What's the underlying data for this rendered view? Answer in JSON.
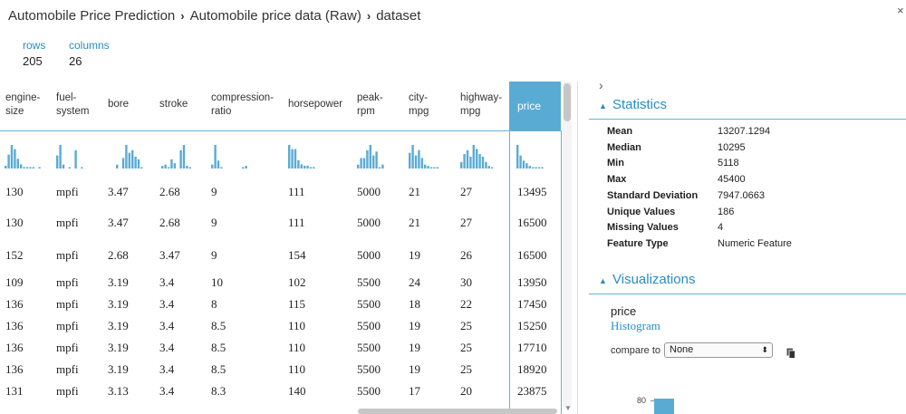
{
  "breadcrumb": [
    "Automobile Price Prediction",
    "Automobile price data (Raw)",
    "dataset"
  ],
  "breadcrumb_sep": "›",
  "close": "×",
  "summary": {
    "rows_label": "rows",
    "rows_value": "205",
    "columns_label": "columns",
    "columns_value": "26"
  },
  "columns": [
    {
      "l1": "engine-",
      "l2": "size"
    },
    {
      "l1": "fuel-",
      "l2": "system"
    },
    {
      "l1": "bore",
      "l2": ""
    },
    {
      "l1": "stroke",
      "l2": ""
    },
    {
      "l1": "compression-",
      "l2": "ratio"
    },
    {
      "l1": "horsepower",
      "l2": ""
    },
    {
      "l1": "peak-",
      "l2": "rpm"
    },
    {
      "l1": "city-",
      "l2": "mpg"
    },
    {
      "l1": "highway-",
      "l2": "mpg"
    },
    {
      "l1": "price",
      "l2": ""
    }
  ],
  "mini_histograms": [
    [
      2,
      10,
      17,
      14,
      7,
      3,
      1,
      1,
      1,
      1,
      0,
      1
    ],
    [
      10,
      18,
      3,
      0,
      1,
      0,
      14,
      0,
      1
    ],
    [
      3,
      0,
      8,
      18,
      12,
      14,
      9,
      7,
      1,
      0,
      0
    ],
    [
      2,
      3,
      1,
      7,
      4,
      0,
      14,
      18,
      2,
      1,
      0
    ],
    [
      3,
      18,
      6,
      1,
      0,
      0,
      0,
      0,
      0,
      0,
      1,
      2
    ],
    [
      17,
      14,
      14,
      6,
      3,
      2,
      2,
      1,
      1,
      0,
      0
    ],
    [
      3,
      8,
      8,
      14,
      18,
      10,
      13,
      1,
      3,
      0
    ],
    [
      12,
      18,
      10,
      14,
      8,
      3,
      2,
      1,
      1,
      1
    ],
    [
      5,
      11,
      14,
      9,
      18,
      15,
      11,
      9,
      5,
      2,
      1
    ],
    [
      18,
      10,
      6,
      4,
      2,
      1,
      1,
      1,
      1,
      0
    ]
  ],
  "rows": [
    [
      "130",
      "mpfi",
      "3.47",
      "2.68",
      "9",
      "111",
      "5000",
      "21",
      "27",
      "13495"
    ],
    [
      "130",
      "mpfi",
      "3.47",
      "2.68",
      "9",
      "111",
      "5000",
      "21",
      "27",
      "16500"
    ],
    [
      "152",
      "mpfi",
      "2.68",
      "3.47",
      "9",
      "154",
      "5000",
      "19",
      "26",
      "16500"
    ],
    [
      "109",
      "mpfi",
      "3.19",
      "3.4",
      "10",
      "102",
      "5500",
      "24",
      "30",
      "13950"
    ],
    [
      "136",
      "mpfi",
      "3.19",
      "3.4",
      "8",
      "115",
      "5500",
      "18",
      "22",
      "17450"
    ],
    [
      "136",
      "mpfi",
      "3.19",
      "3.4",
      "8.5",
      "110",
      "5500",
      "19",
      "25",
      "15250"
    ],
    [
      "136",
      "mpfi",
      "3.19",
      "3.4",
      "8.5",
      "110",
      "5500",
      "19",
      "25",
      "17710"
    ],
    [
      "136",
      "mpfi",
      "3.19",
      "3.4",
      "8.5",
      "110",
      "5500",
      "19",
      "25",
      "18920"
    ],
    [
      "131",
      "mpfi",
      "3.13",
      "3.4",
      "8.3",
      "140",
      "5500",
      "17",
      "20",
      "23875"
    ]
  ],
  "panel": {
    "chevron": "›",
    "statistics_title": "Statistics",
    "stats": [
      {
        "label": "Mean",
        "value": "13207.1294"
      },
      {
        "label": "Median",
        "value": "10295"
      },
      {
        "label": "Min",
        "value": "5118"
      },
      {
        "label": "Max",
        "value": "45400"
      },
      {
        "label": "Standard Deviation",
        "value": "7947.0663"
      },
      {
        "label": "Unique Values",
        "value": "186"
      },
      {
        "label": "Missing Values",
        "value": "4"
      },
      {
        "label": "Feature Type",
        "value": "Numeric Feature"
      }
    ],
    "visualizations_title": "Visualizations",
    "viz_column": "price",
    "viz_type": "Histogram",
    "compare_label": "compare to",
    "compare_value": "None",
    "axis_label": "80"
  },
  "colors": {
    "accent": "#2a8dc3",
    "bar": "#5aabd4"
  }
}
